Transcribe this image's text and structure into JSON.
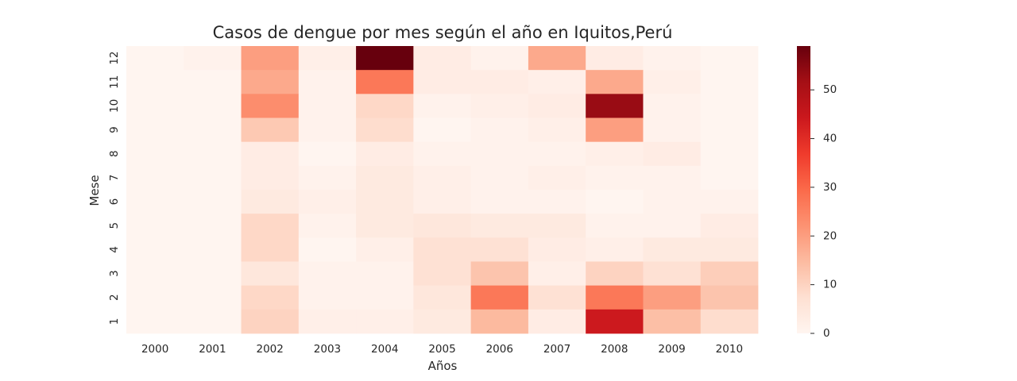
{
  "chart_data": {
    "type": "heatmap",
    "title": "Casos de dengue por mes según el año en Iquitos,Perú",
    "xlabel": "Años",
    "ylabel": "Mese",
    "x": [
      "2000",
      "2001",
      "2002",
      "2003",
      "2004",
      "2005",
      "2006",
      "2007",
      "2008",
      "2009",
      "2010"
    ],
    "y": [
      "12",
      "11",
      "10",
      "9",
      "8",
      "7",
      "6",
      "5",
      "4",
      "3",
      "2",
      "1"
    ],
    "values": [
      [
        0,
        1,
        20,
        2,
        59,
        3,
        1,
        18,
        3,
        1,
        0
      ],
      [
        0,
        0,
        18,
        1,
        27,
        3,
        3,
        2,
        18,
        2,
        0
      ],
      [
        0,
        0,
        23,
        1,
        9,
        1,
        2,
        3,
        53,
        1,
        0
      ],
      [
        0,
        0,
        12,
        1,
        8,
        0,
        1,
        2,
        20,
        1,
        0
      ],
      [
        0,
        0,
        3,
        0,
        3,
        1,
        1,
        1,
        2,
        3,
        0
      ],
      [
        0,
        0,
        3,
        1,
        4,
        2,
        1,
        2,
        1,
        1,
        0
      ],
      [
        0,
        0,
        4,
        2,
        4,
        2,
        1,
        1,
        0,
        1,
        1
      ],
      [
        0,
        0,
        9,
        1,
        4,
        5,
        4,
        4,
        1,
        1,
        3
      ],
      [
        0,
        0,
        9,
        0,
        2,
        7,
        7,
        3,
        2,
        4,
        4
      ],
      [
        0,
        0,
        5,
        1,
        1,
        7,
        13,
        2,
        10,
        7,
        11
      ],
      [
        0,
        0,
        9,
        1,
        1,
        5,
        27,
        7,
        27,
        20,
        13
      ],
      [
        0,
        0,
        10,
        2,
        2,
        4,
        15,
        3,
        44,
        14,
        8
      ]
    ],
    "colorbar": {
      "min": 0,
      "max": 59,
      "ticks": [
        0,
        10,
        20,
        30,
        40,
        50
      ]
    },
    "colormap": [
      "#fff5f0",
      "#fee0d2",
      "#fcbba1",
      "#fc9272",
      "#fb6a4a",
      "#ef3b2c",
      "#cb181d",
      "#a50f15",
      "#67000d"
    ],
    "grid": false
  }
}
